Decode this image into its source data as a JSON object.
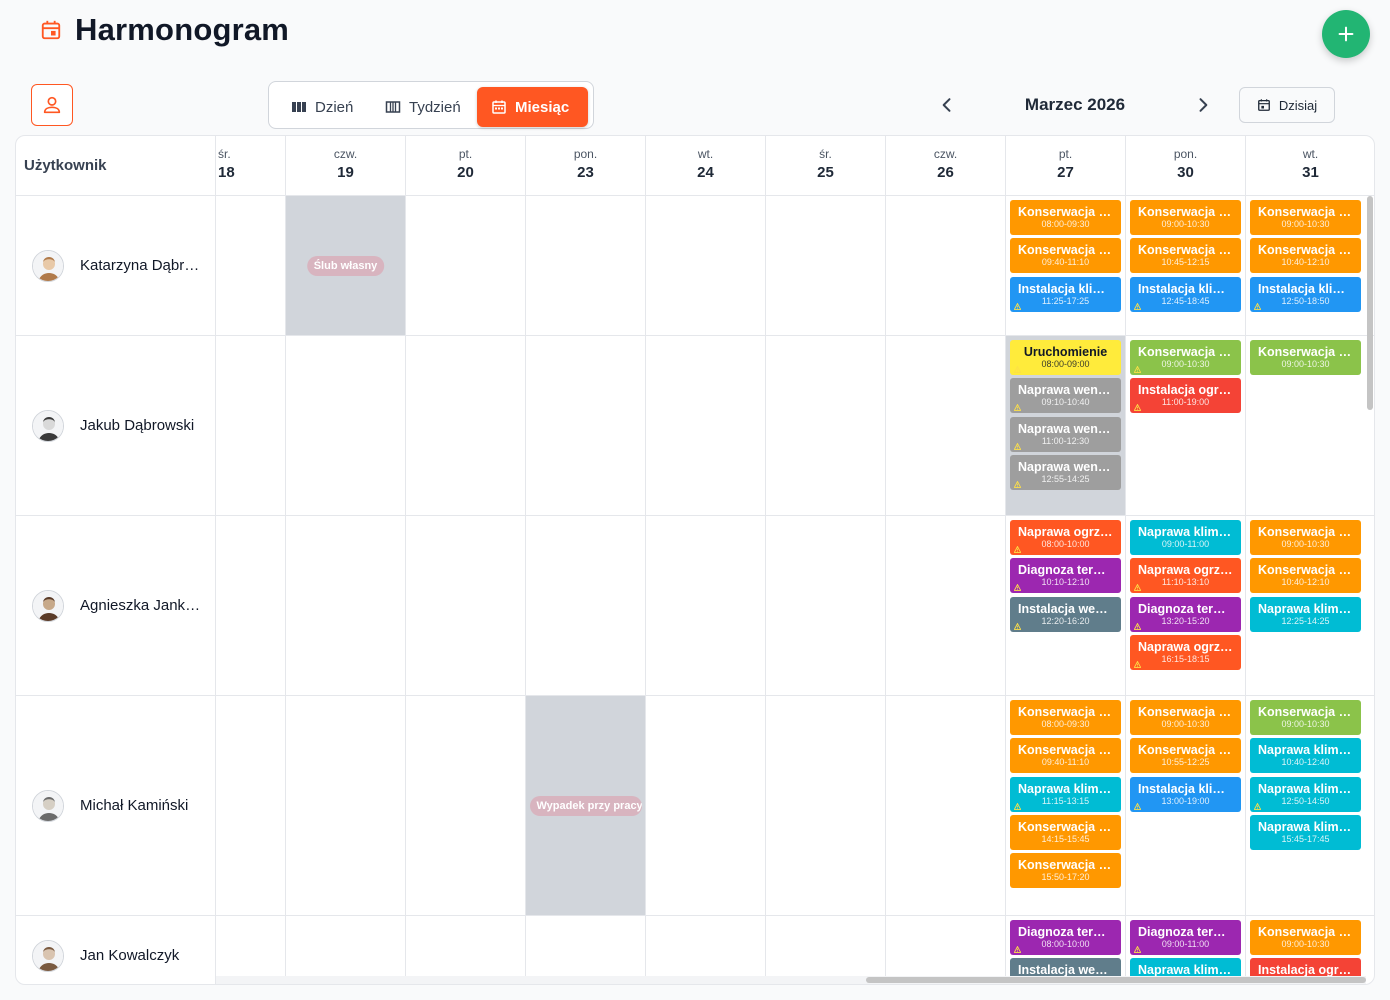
{
  "header": {
    "title": "Harmonogram"
  },
  "toolbar": {
    "views": [
      {
        "label": "Dzień",
        "active": false
      },
      {
        "label": "Tydzień",
        "active": false
      },
      {
        "label": "Miesiąc",
        "active": true
      }
    ],
    "month": "Marzec 2026",
    "today_label": "Dzisiaj"
  },
  "grid": {
    "user_header": "Użytkownik",
    "days": [
      {
        "name": "śr.",
        "num": "18"
      },
      {
        "name": "czw.",
        "num": "19"
      },
      {
        "name": "pt.",
        "num": "20"
      },
      {
        "name": "pon.",
        "num": "23"
      },
      {
        "name": "wt.",
        "num": "24"
      },
      {
        "name": "śr.",
        "num": "25"
      },
      {
        "name": "czw.",
        "num": "26"
      },
      {
        "name": "pt.",
        "num": "27"
      },
      {
        "name": "pon.",
        "num": "30"
      },
      {
        "name": "wt.",
        "num": "31"
      }
    ],
    "users": [
      {
        "name": "Katarzyna Dąbrowska",
        "absences": [
          {
            "day": 1,
            "label": "Ślub własny"
          }
        ],
        "events": [
          [],
          [],
          [],
          [],
          [],
          [],
          [],
          [
            {
              "title": "Konserwacja klimatyzacji",
              "time": "08:00-09:30",
              "color": "#ff9800",
              "warn": false
            },
            {
              "title": "Konserwacja klimatyzacji",
              "time": "09:40-11:10",
              "color": "#ff9800",
              "warn": false
            },
            {
              "title": "Instalacja klimatyzacji",
              "time": "11:25-17:25",
              "color": "#2196f3",
              "warn": true
            }
          ],
          [
            {
              "title": "Konserwacja klimatyzacji",
              "time": "09:00-10:30",
              "color": "#ff9800",
              "warn": false
            },
            {
              "title": "Konserwacja klimatyzacji",
              "time": "10:45-12:15",
              "color": "#ff9800",
              "warn": false
            },
            {
              "title": "Instalacja klimatyzacji",
              "time": "12:45-18:45",
              "color": "#2196f3",
              "warn": true
            }
          ],
          [
            {
              "title": "Konserwacja klimatyzacji",
              "time": "09:00-10:30",
              "color": "#ff9800",
              "warn": false
            },
            {
              "title": "Konserwacja klimatyzacji",
              "time": "10:40-12:10",
              "color": "#ff9800",
              "warn": false
            },
            {
              "title": "Instalacja klimatyzacji",
              "time": "12:50-18:50",
              "color": "#2196f3",
              "warn": true
            }
          ]
        ]
      },
      {
        "name": "Jakub Dąbrowski",
        "absences": [],
        "shaded_days": [
          7
        ],
        "events": [
          [],
          [],
          [],
          [],
          [],
          [],
          [],
          [
            {
              "title": "Uruchomienie",
              "time": "08:00-09:00",
              "color": "#ffeb3b",
              "warn": true,
              "dark_text": true
            },
            {
              "title": "Naprawa wentylacji",
              "time": "09:10-10:40",
              "color": "#9e9e9e",
              "warn": true
            },
            {
              "title": "Naprawa wentylacji",
              "time": "11:00-12:30",
              "color": "#9e9e9e",
              "warn": true
            },
            {
              "title": "Naprawa wentylacji",
              "time": "12:55-14:25",
              "color": "#9e9e9e",
              "warn": true
            }
          ],
          [
            {
              "title": "Konserwacja klimatyzacji",
              "time": "09:00-10:30",
              "color": "#8bc34a",
              "warn": true
            },
            {
              "title": "Instalacja ogrzewania",
              "time": "11:00-19:00",
              "color": "#f44336",
              "warn": true
            }
          ],
          [
            {
              "title": "Konserwacja klimatyzacji",
              "time": "09:00-10:30",
              "color": "#8bc34a",
              "warn": false
            }
          ]
        ]
      },
      {
        "name": "Agnieszka Jankowska",
        "absences": [],
        "events": [
          [],
          [],
          [],
          [],
          [],
          [],
          [],
          [
            {
              "title": "Naprawa ogrzewania",
              "time": "08:00-10:00",
              "color": "#ff5722",
              "warn": true
            },
            {
              "title": "Diagnoza termowizyjna",
              "time": "10:10-12:10",
              "color": "#9c27b0",
              "warn": true
            },
            {
              "title": "Instalacja wentylacji",
              "time": "12:20-16:20",
              "color": "#607d8b",
              "warn": true
            }
          ],
          [
            {
              "title": "Naprawa klimatyzacji",
              "time": "09:00-11:00",
              "color": "#00bcd4",
              "warn": false
            },
            {
              "title": "Naprawa ogrzewania",
              "time": "11:10-13:10",
              "color": "#ff5722",
              "warn": true
            },
            {
              "title": "Diagnoza termowizyjna",
              "time": "13:20-15:20",
              "color": "#9c27b0",
              "warn": true
            },
            {
              "title": "Naprawa ogrzewania",
              "time": "16:15-18:15",
              "color": "#ff5722",
              "warn": true
            }
          ],
          [
            {
              "title": "Konserwacja klimatyzacji",
              "time": "09:00-10:30",
              "color": "#ff9800",
              "warn": false
            },
            {
              "title": "Konserwacja klimatyzacji",
              "time": "10:40-12:10",
              "color": "#ff9800",
              "warn": false
            },
            {
              "title": "Naprawa klimatyzacji",
              "time": "12:25-14:25",
              "color": "#00bcd4",
              "warn": false
            }
          ]
        ]
      },
      {
        "name": "Michał Kamiński",
        "absences": [
          {
            "day": 3,
            "label": "Wypadek przy pracy"
          }
        ],
        "events": [
          [],
          [],
          [],
          [],
          [],
          [],
          [],
          [
            {
              "title": "Konserwacja klimatyzacji",
              "time": "08:00-09:30",
              "color": "#ff9800",
              "warn": false
            },
            {
              "title": "Konserwacja klimatyzacji",
              "time": "09:40-11:10",
              "color": "#ff9800",
              "warn": false
            },
            {
              "title": "Naprawa klimatyzacji",
              "time": "11:15-13:15",
              "color": "#00bcd4",
              "warn": true
            },
            {
              "title": "Konserwacja klimatyzacji",
              "time": "14:15-15:45",
              "color": "#ff9800",
              "warn": false
            },
            {
              "title": "Konserwacja klimatyzacji",
              "time": "15:50-17:20",
              "color": "#ff9800",
              "warn": false
            }
          ],
          [
            {
              "title": "Konserwacja klimatyzacji",
              "time": "09:00-10:30",
              "color": "#ff9800",
              "warn": false
            },
            {
              "title": "Konserwacja klimatyzacji",
              "time": "10:55-12:25",
              "color": "#ff9800",
              "warn": false
            },
            {
              "title": "Instalacja klimatyzacji",
              "time": "13:00-19:00",
              "color": "#2196f3",
              "warn": true
            }
          ],
          [
            {
              "title": "Konserwacja klimatyzacji",
              "time": "09:00-10:30",
              "color": "#8bc34a",
              "warn": false
            },
            {
              "title": "Naprawa klimatyzacji",
              "time": "10:40-12:40",
              "color": "#00bcd4",
              "warn": false
            },
            {
              "title": "Naprawa klimatyzacji",
              "time": "12:50-14:50",
              "color": "#00bcd4",
              "warn": true
            },
            {
              "title": "Naprawa klimatyzacji",
              "time": "15:45-17:45",
              "color": "#00bcd4",
              "warn": false
            }
          ]
        ]
      },
      {
        "name": "Jan Kowalczyk",
        "absences": [],
        "events": [
          [],
          [],
          [],
          [],
          [],
          [],
          [],
          [
            {
              "title": "Diagnoza termowizyjna",
              "time": "08:00-10:00",
              "color": "#9c27b0",
              "warn": true
            },
            {
              "title": "Instalacja wentylacji",
              "time": "",
              "color": "#607d8b",
              "warn": false
            }
          ],
          [
            {
              "title": "Diagnoza termowizyjna",
              "time": "09:00-11:00",
              "color": "#9c27b0",
              "warn": true
            },
            {
              "title": "Naprawa klimatyzacji",
              "time": "",
              "color": "#00bcd4",
              "warn": false
            }
          ],
          [
            {
              "title": "Konserwacja klimatyzacji",
              "time": "09:00-10:30",
              "color": "#ff9800",
              "warn": false
            },
            {
              "title": "Instalacja ogrzewania",
              "time": "",
              "color": "#f44336",
              "warn": false
            }
          ]
        ]
      }
    ]
  }
}
